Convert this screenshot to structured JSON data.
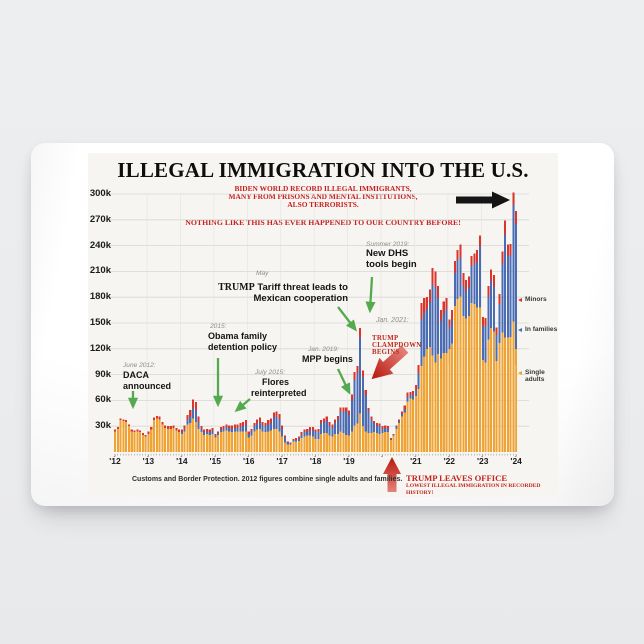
{
  "header": {
    "title": "ILLEGAL IMMIGRATION INTO THE U.S."
  },
  "callouts": {
    "biden_lines": [
      "BIDEN WORLD RECORD ILLEGAL IMMIGRANTS,",
      "MANY FROM PRISONS AND MENTAL INSTITUTIONS,",
      "ALSO TERRORISTS."
    ],
    "nothing_like": "NOTHING LIKE THIS HAS EVER HAPPENED TO OUR COUNTRY BEFORE!"
  },
  "annotations": {
    "daca": {
      "date": "June 2012:",
      "lines": [
        "DACA",
        "announced"
      ]
    },
    "obama": {
      "date": "2015:",
      "lines": [
        "Obama family",
        "detention policy"
      ]
    },
    "flores": {
      "date": "July 2015:",
      "lines": [
        "Flores",
        "reinterpreted"
      ]
    },
    "tariff": {
      "date": "May",
      "line1_head": "TRUMP",
      "line1_rest": " Tariff threat leads to",
      "line2": "Mexican cooperation"
    },
    "dhs": {
      "date": "Summer 2019:",
      "lines": [
        "New DHS",
        "tools begin"
      ]
    },
    "mpp": {
      "date": "Jan. 2019:",
      "lines": [
        "MPP begins"
      ]
    },
    "jan2021": {
      "date": "Jan. 2021:"
    },
    "clampdown": {
      "lines": [
        "TRUMP",
        "CLAMPDOWN",
        "BEGINS"
      ]
    },
    "leaves_office": {
      "title": "TRUMP LEAVES OFFICE",
      "subtitle": "LOWEST ILLEGAL IMMIGRATION IN RECORDED HISTORY!"
    }
  },
  "legend": {
    "items": [
      {
        "label": "Minors",
        "color": "#d9352c"
      },
      {
        "label": "In families",
        "color": "#4a6cb4"
      },
      {
        "label": "Single adults",
        "color": "#f0a232"
      }
    ]
  },
  "colors": {
    "single_adults": "#f0a232",
    "in_families": "#4a6cb4",
    "minors": "#d9352c",
    "red_text": "#c61f1f",
    "green_arrow": "#55a94e",
    "grid": "#d7d6d2"
  },
  "chart_data": {
    "type": "bar",
    "stacked": true,
    "title": "Illegal immigration into the U.S. (monthly apprehensions)",
    "x_start": "2012-01",
    "x_end": "2024-01",
    "unit": "thousands per month",
    "ylim": [
      0,
      310
    ],
    "grid": true,
    "y_ticks": [
      {
        "label": "300k",
        "value": 300
      },
      {
        "label": "270k",
        "value": 270
      },
      {
        "label": "240k",
        "value": 240
      },
      {
        "label": "210k",
        "value": 210
      },
      {
        "label": "180k",
        "value": 180
      },
      {
        "label": "150k",
        "value": 150
      },
      {
        "label": "120k",
        "value": 120
      },
      {
        "label": "90k",
        "value": 90
      },
      {
        "label": "60k",
        "value": 60
      },
      {
        "label": "30k",
        "value": 30
      }
    ],
    "x_year_labels": [
      {
        "label": "'12",
        "index": 0
      },
      {
        "label": "'13",
        "index": 1
      },
      {
        "label": "'14",
        "index": 2
      },
      {
        "label": "'15",
        "index": 3
      },
      {
        "label": "'16",
        "index": 4
      },
      {
        "label": "'17",
        "index": 5
      },
      {
        "label": "'18",
        "index": 6
      },
      {
        "label": "'19",
        "index": 7
      },
      {
        "label": "'21",
        "index": 9
      },
      {
        "label": "'22",
        "index": 10
      },
      {
        "label": "'23",
        "index": 11
      },
      {
        "label": "'24",
        "index": 12
      }
    ],
    "series": [
      {
        "name": "Single adults",
        "color": "#f0a232",
        "values": [
          24,
          27,
          37,
          36,
          35,
          30,
          24,
          23,
          24,
          23,
          20,
          18,
          21,
          26,
          37,
          39,
          38,
          32,
          28,
          27,
          27,
          28,
          25,
          23,
          21,
          24,
          32,
          34,
          39,
          35,
          27,
          23,
          20,
          21,
          20,
          21,
          17,
          20,
          23,
          24,
          25,
          24,
          23,
          24,
          24,
          24,
          24,
          24,
          17,
          19,
          24,
          26,
          27,
          24,
          23,
          24,
          25,
          27,
          27,
          24,
          18,
          11,
          9,
          9,
          12,
          12,
          13,
          16,
          18,
          19,
          19,
          18,
          15,
          15,
          21,
          22,
          22,
          19,
          18,
          21,
          21,
          24,
          22,
          20,
          19,
          24,
          31,
          33,
          45,
          30,
          24,
          22,
          22,
          23,
          22,
          21,
          22,
          23,
          23,
          14,
          19,
          27,
          34,
          41,
          46,
          59,
          62,
          61,
          65,
          73,
          100,
          111,
          120,
          122,
          112,
          104,
          114,
          109,
          115,
          115,
          120,
          126,
          170,
          178,
          181,
          158,
          155,
          158,
          173,
          172,
          168,
          168,
          107,
          104,
          131,
          144,
          140,
          106,
          127,
          139,
          133,
          133,
          134,
          152,
          120
        ]
      },
      {
        "name": "In families",
        "color": "#4a6cb4",
        "values": [
          0,
          0,
          0,
          0,
          0,
          0,
          0,
          0,
          0,
          0,
          0,
          0,
          0,
          0,
          0,
          0,
          0,
          0,
          0,
          0,
          0,
          0,
          0,
          0,
          2,
          3,
          5,
          7,
          12,
          13,
          8,
          4,
          3,
          3,
          3,
          4,
          2,
          2,
          3,
          3,
          4,
          4,
          4,
          4,
          4,
          5,
          6,
          7,
          4,
          5,
          6,
          7,
          8,
          7,
          7,
          8,
          9,
          13,
          14,
          14,
          9,
          6,
          2,
          1,
          2,
          2,
          3,
          4,
          5,
          5,
          6,
          7,
          8,
          9,
          12,
          13,
          14,
          12,
          10,
          13,
          16,
          23,
          25,
          27,
          24,
          36,
          53,
          58,
          88,
          57,
          42,
          25,
          16,
          10,
          9,
          9,
          5,
          5,
          4,
          1,
          1,
          2,
          2,
          3,
          4,
          5,
          4,
          5,
          7,
          19,
          54,
          51,
          46,
          52,
          83,
          87,
          65,
          43,
          46,
          52,
          25,
          27,
          38,
          45,
          45,
          35,
          32,
          33,
          43,
          47,
          53,
          71,
          40,
          42,
          50,
          55,
          52,
          30,
          45,
          80,
          120,
          95,
          95,
          135,
          145
        ]
      },
      {
        "name": "Minors",
        "color": "#d9352c",
        "values": [
          2,
          2,
          2,
          2,
          2,
          2,
          2,
          2,
          2,
          2,
          2,
          2,
          3,
          3,
          3,
          3,
          3,
          3,
          3,
          3,
          3,
          3,
          3,
          3,
          3,
          4,
          6,
          8,
          10,
          10,
          6,
          3,
          3,
          3,
          3,
          3,
          2,
          2,
          3,
          3,
          3,
          3,
          4,
          4,
          4,
          5,
          5,
          6,
          3,
          3,
          4,
          5,
          5,
          4,
          4,
          5,
          5,
          6,
          6,
          6,
          4,
          2,
          1,
          1,
          1,
          2,
          2,
          3,
          3,
          3,
          4,
          4,
          3,
          3,
          4,
          4,
          5,
          4,
          4,
          4,
          5,
          5,
          5,
          5,
          5,
          7,
          9,
          9,
          11,
          8,
          6,
          4,
          3,
          3,
          3,
          3,
          3,
          3,
          3,
          1,
          1,
          2,
          2,
          3,
          4,
          5,
          4,
          5,
          6,
          9,
          19,
          17,
          14,
          15,
          19,
          19,
          14,
          13,
          14,
          12,
          9,
          12,
          14,
          12,
          15,
          15,
          13,
          13,
          12,
          12,
          14,
          13,
          10,
          10,
          12,
          13,
          14,
          9,
          12,
          14,
          16,
          13,
          13,
          15,
          15
        ]
      }
    ],
    "source_note": "Customs and Border Protection. 2012 figures combine single adults and families."
  }
}
